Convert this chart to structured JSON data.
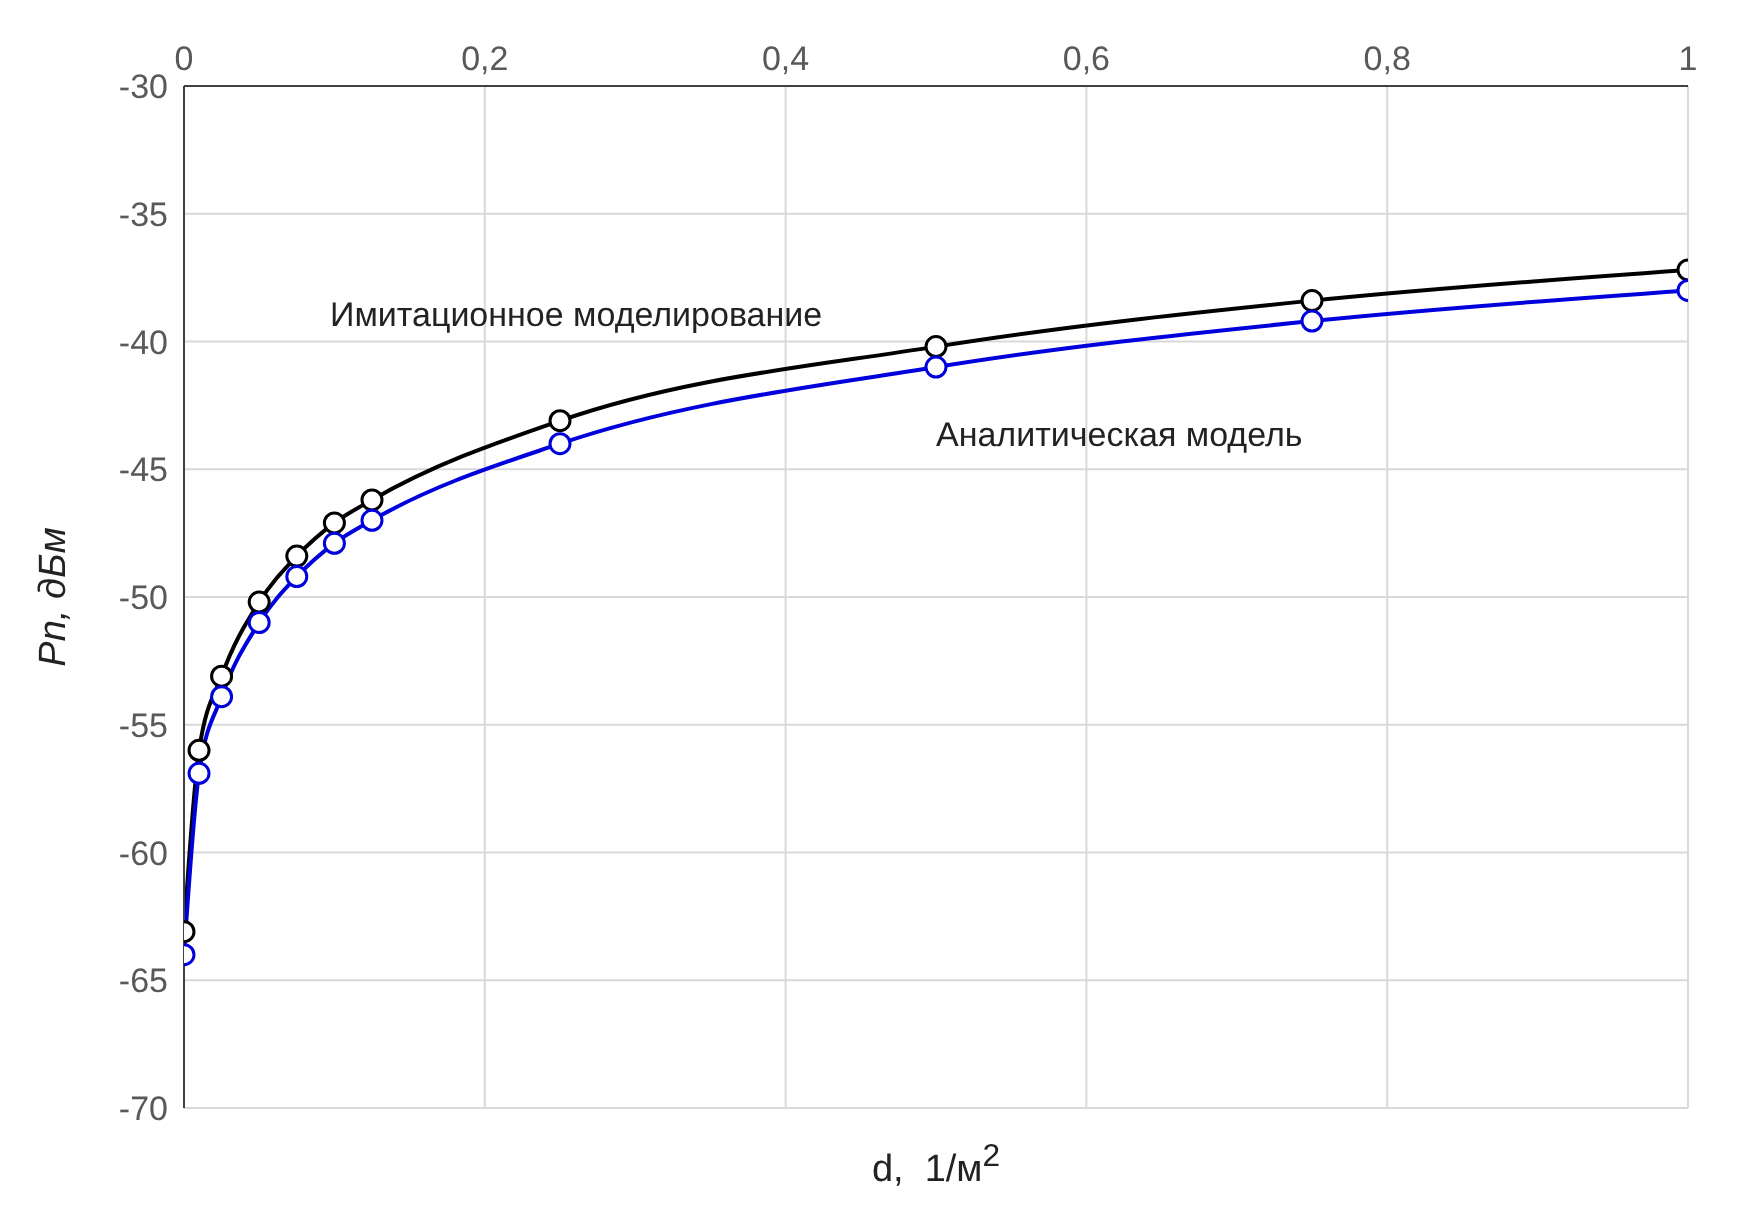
{
  "chart_data": {
    "type": "line",
    "xlabel": "d,  1/м$^{2}$",
    "ylabel": "Pn, дБм",
    "x": [
      0,
      0.01,
      0.025,
      0.05,
      0.075,
      0.1,
      0.125,
      0.25,
      0.5,
      0.75,
      1
    ],
    "series": [
      {
        "color": "#000000",
        "values": [
          -63.1,
          -56,
          -53.1,
          -50.2,
          -48.4,
          -47.1,
          -46.2,
          -43.1,
          -40.2,
          -38.4,
          -37.2
        ]
      },
      {
        "color": "#0000dd",
        "values": [
          -64,
          -56.9,
          -53.9,
          -51,
          -49.2,
          -47.9,
          -47,
          -44,
          -41,
          -39.2,
          -38
        ]
      }
    ],
    "xlim": [
      0,
      1
    ],
    "xticks": [
      0,
      {
        "value": 0.2,
        "label": "0,2"
      },
      {
        "value": 0.4,
        "label": "0,4"
      },
      {
        "value": 0.6,
        "label": "0,6"
      },
      {
        "value": 0.8,
        "label": "0,8"
      },
      1
    ],
    "ylim": [
      -70,
      -30
    ],
    "yticks": [
      -30,
      -35,
      -40,
      -45,
      -50,
      -55,
      -60,
      -65,
      -70
    ],
    "grid": true,
    "marker": "circle",
    "line_style": "solid",
    "annotations": [
      "Имитационное моделирование",
      "Аналитическая модель"
    ]
  }
}
